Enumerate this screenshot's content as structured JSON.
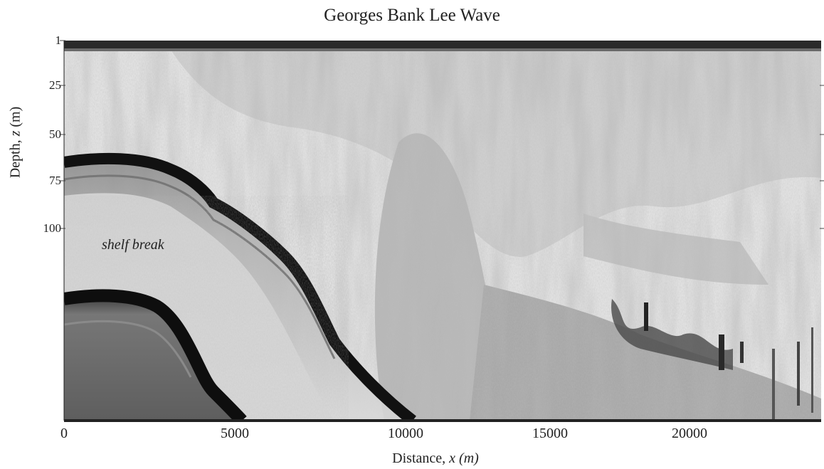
{
  "figure": {
    "title": "Georges Bank Lee Wave",
    "ylabel_prefix": "Depth, ",
    "ylabel_var": "z",
    "ylabel_unit": " (m)",
    "xlabel_prefix": "Distance, ",
    "xlabel_var": "x",
    "xlabel_unit": " (m)",
    "annotation": "shelf break",
    "yticks": [
      "1",
      "25",
      "50",
      "75",
      "100"
    ],
    "xticks": [
      "0",
      "5000",
      "10000",
      "15000",
      "20000"
    ]
  },
  "colors": {
    "background": "#ffffff",
    "echo_light": "#e4e4e4",
    "echo_mid": "#9a9a9a",
    "echo_dark": "#1a1a1a",
    "seabed": "#5a5a5a"
  }
}
